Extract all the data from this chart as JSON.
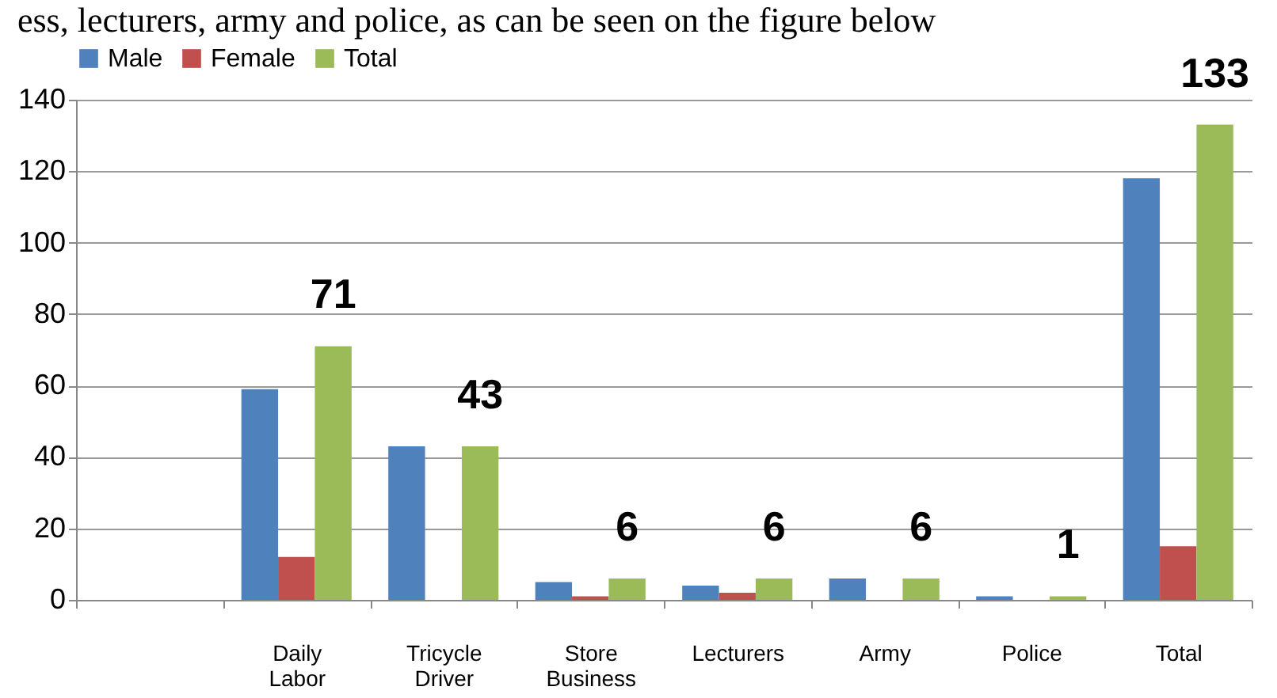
{
  "chart_data": {
    "type": "bar",
    "annotations": [
      "ess, lecturers, army and police, as can be seen on the figure below"
    ],
    "categories": [
      null,
      "Daily Labor",
      "Tricycle Driver",
      "Store Business",
      "Lecturers",
      "Army",
      "Police",
      "Total"
    ],
    "series": [
      {
        "name": "Male",
        "color": "#4f81bd",
        "values": [
          null,
          59,
          43,
          5,
          4,
          6,
          1,
          118
        ]
      },
      {
        "name": "Female",
        "color": "#c0504d",
        "values": [
          null,
          12,
          null,
          1,
          2,
          null,
          null,
          15
        ]
      },
      {
        "name": "Total",
        "color": "#9bbb59",
        "values": [
          null,
          71,
          43,
          6,
          6,
          6,
          1,
          133
        ],
        "value_labels": [
          null,
          "71",
          "43",
          "6",
          "6",
          "6",
          "1",
          "133"
        ]
      }
    ],
    "ylim": [
      0,
      140
    ],
    "yticks": [
      0,
      20,
      40,
      60,
      80,
      100,
      120,
      140
    ],
    "grid": "y",
    "legend": "top"
  }
}
